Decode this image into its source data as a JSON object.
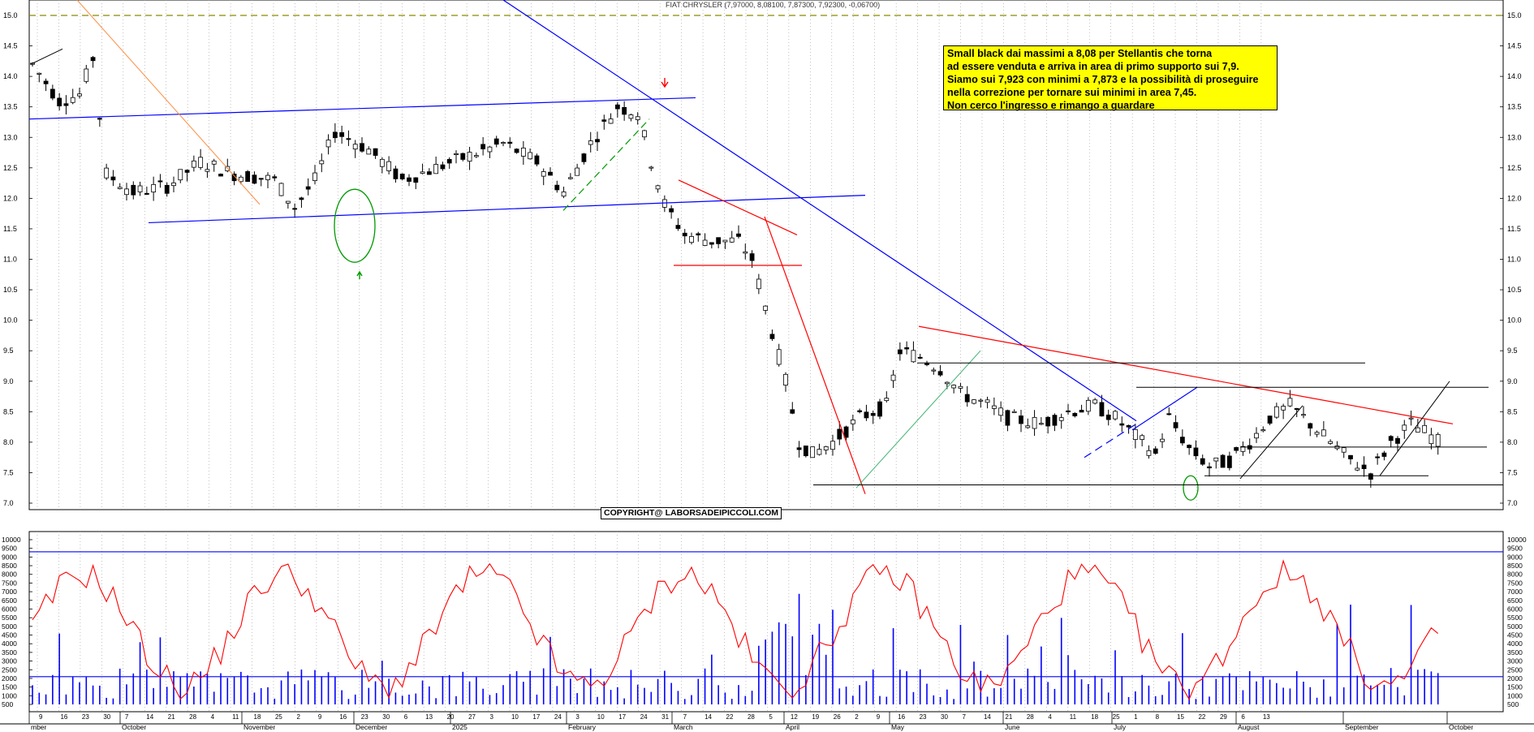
{
  "header": {
    "title": "FIAT CHRYSLER (7,97000, 8,08100, 7,87300, 7,92300, -0,06700)"
  },
  "annotation": {
    "lines": [
      "Small black dai massimi a 8,08 per Stellantis che torna",
      "ad essere venduta e arriva in area di primo supporto sui 7,9.",
      "Siamo sui 7,923 con minimi a 7,873 e la possibilità di proseguire",
      "nella correzione per tornare sui minimi in area 7,45.",
      "Non cerco l'ingresso e rimango a guardare"
    ]
  },
  "copyright": "COPYRIGHT@ LABORSADEIPICCOLI.COM",
  "colors": {
    "background": "#ffffff",
    "candle": "#000000",
    "trend_blue": "#0000ff",
    "trend_red": "#ff0000",
    "volume": "#0000ff",
    "oscillator": "#ff0000",
    "annotation_bg": "#ffff00"
  },
  "chart_data": [
    {
      "type": "candlestick",
      "title": "FIAT CHRYSLER",
      "ylim": [
        6.85,
        15.1
      ],
      "y_ticks": [
        "7.0",
        "7.5",
        "8.0",
        "8.5",
        "9.0",
        "9.5",
        "10.0",
        "10.5",
        "11.0",
        "11.5",
        "12.0",
        "12.5",
        "13.0",
        "13.5",
        "14.0",
        "14.5",
        "15.0"
      ],
      "x_tick_labels": [
        "9",
        "16",
        "23",
        "30",
        "7",
        "14",
        "21",
        "28",
        "4",
        "11",
        "18",
        "25",
        "2",
        "9",
        "16",
        "23",
        "30",
        "6",
        "13",
        "20",
        "27",
        "3",
        "10",
        "17",
        "24",
        "3",
        "10",
        "17",
        "24",
        "31",
        "7",
        "14",
        "22",
        "28",
        "5",
        "12",
        "19",
        "26",
        "2",
        "9",
        "16",
        "23",
        "30",
        "7",
        "14",
        "21",
        "28",
        "4",
        "11",
        "18",
        "25",
        "1",
        "8",
        "15",
        "22",
        "29",
        "6",
        "13"
      ],
      "month_labels": [
        "mber",
        "October",
        "November",
        "December",
        "2025",
        "February",
        "March",
        "April",
        "May",
        "June",
        "July",
        "August",
        "September",
        "October"
      ],
      "grid": true,
      "key_levels": {
        "upper_channel": [
          13.3,
          13.65
        ],
        "lower_channel": [
          11.6,
          12.05
        ],
        "support_march": 10.9,
        "resistance_june": 9.3,
        "resistance_july": 8.9,
        "support_current": 7.92,
        "support_lows": 7.45,
        "base_line": 7.3,
        "dashed_top": 15.0
      },
      "last_bar": {
        "open": 7.97,
        "high": 8.081,
        "low": 7.873,
        "close": 7.923,
        "change": -0.067
      }
    },
    {
      "type": "bar+line",
      "name": "volume",
      "ylim": [
        0,
        10500
      ],
      "y_ticks": [
        "500",
        "1000",
        "1500",
        "2000",
        "2500",
        "3000",
        "3500",
        "4000",
        "4500",
        "5000",
        "5500",
        "6000",
        "6500",
        "7000",
        "7500",
        "8000",
        "8500",
        "9000",
        "9500",
        "10000"
      ],
      "reference_lines": [
        9300,
        2100
      ]
    }
  ]
}
